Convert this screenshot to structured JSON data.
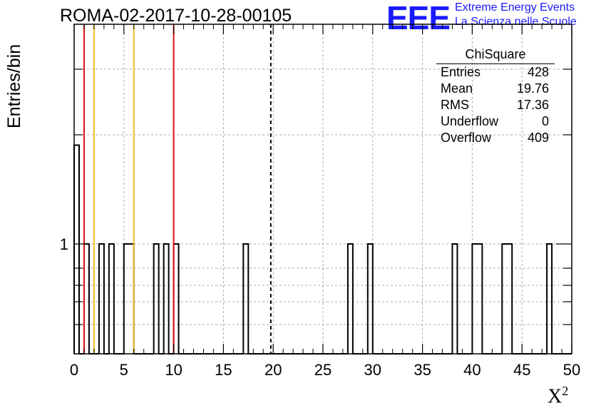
{
  "header": {
    "title": "ROMA-02-2017-10-28-00105",
    "logo_text": "EEE",
    "logo_line1": "Extreme Energy Events",
    "logo_line2": "La Scienza nelle Scuole"
  },
  "stats": {
    "title": "ChiSquare",
    "rows": [
      {
        "label": "Entries",
        "value": "428"
      },
      {
        "label": "Mean",
        "value": "19.76"
      },
      {
        "label": "RMS",
        "value": "17.36"
      },
      {
        "label": "Underflow",
        "value": "0"
      },
      {
        "label": "Overflow",
        "value": "409"
      }
    ]
  },
  "chart_data": {
    "type": "bar",
    "title": "ROMA-02-2017-10-28-00105",
    "xlabel": "X",
    "xlabel_superscript": "2",
    "ylabel": "Entries/bin",
    "xlim": [
      0,
      50
    ],
    "y_log_scale": true,
    "y_tick_labels": [
      "1"
    ],
    "x_ticks": [
      0,
      5,
      10,
      15,
      20,
      25,
      30,
      35,
      40,
      45,
      50
    ],
    "bin_width": 0.5,
    "bins": [
      {
        "x": 0.0,
        "count": 2
      },
      {
        "x": 1.0,
        "count": 1
      },
      {
        "x": 2.5,
        "count": 1
      },
      {
        "x": 3.5,
        "count": 1
      },
      {
        "x": 5.0,
        "count": 1
      },
      {
        "x": 5.5,
        "count": 1
      },
      {
        "x": 8.0,
        "count": 1
      },
      {
        "x": 9.0,
        "count": 1
      },
      {
        "x": 10.0,
        "count": 1
      },
      {
        "x": 17.0,
        "count": 1
      },
      {
        "x": 27.5,
        "count": 1
      },
      {
        "x": 29.5,
        "count": 1
      },
      {
        "x": 38.0,
        "count": 1
      },
      {
        "x": 40.0,
        "count": 1
      },
      {
        "x": 40.5,
        "count": 1
      },
      {
        "x": 43.0,
        "count": 1
      },
      {
        "x": 43.5,
        "count": 1
      },
      {
        "x": 47.5,
        "count": 1
      }
    ],
    "reference_lines": [
      {
        "x": 1.0,
        "color": "#dd1111",
        "style": "solid"
      },
      {
        "x": 2.0,
        "color": "#f0c020",
        "style": "solid"
      },
      {
        "x": 6.0,
        "color": "#f0c020",
        "style": "solid"
      },
      {
        "x": 10.0,
        "color": "#dd1111",
        "style": "solid"
      },
      {
        "x": 19.76,
        "color": "#000000",
        "style": "dashed"
      }
    ],
    "grid": true
  }
}
